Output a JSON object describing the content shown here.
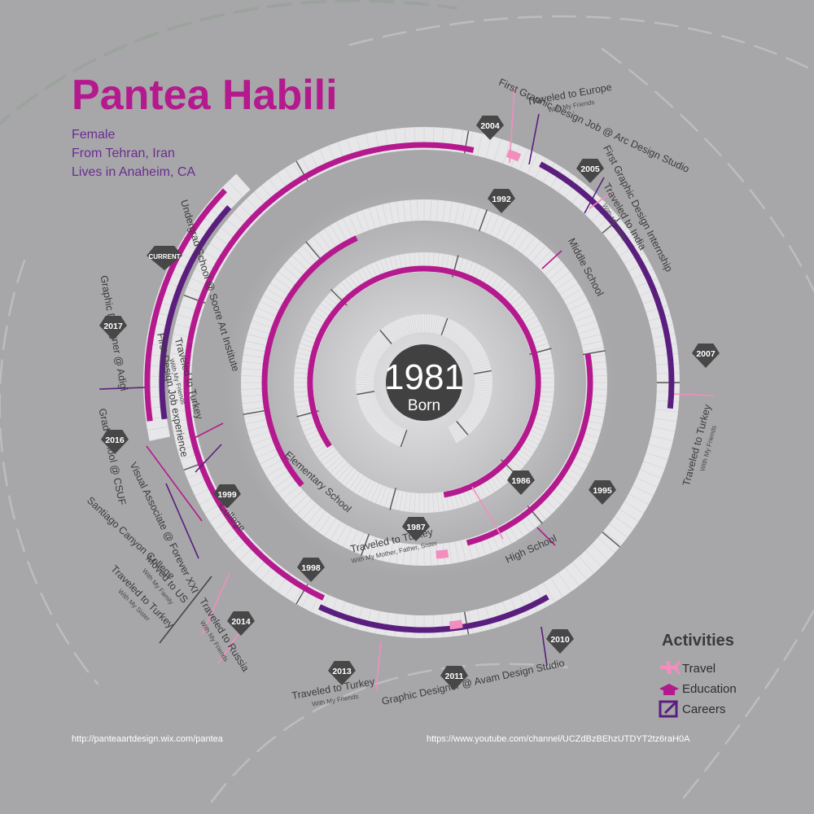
{
  "profile": {
    "name": "Pantea Habili",
    "lines": [
      "Female",
      "From Tehran, Iran",
      "Lives in Anaheim, CA"
    ]
  },
  "center": {
    "year": "1981",
    "label": "Born"
  },
  "colors": {
    "background": "#a7a7a9",
    "ring": "#e7e7e9",
    "education": "#b5198e",
    "career": "#5a1e7e",
    "travel": "#f28dbe",
    "marker": "#474747",
    "title": "#b5198e",
    "subtitle": "#6a2c91"
  },
  "year_markers": [
    {
      "year": "1986"
    },
    {
      "year": "1987"
    },
    {
      "year": "1992"
    },
    {
      "year": "1995"
    },
    {
      "year": "1998"
    },
    {
      "year": "1999"
    },
    {
      "year": "2004"
    },
    {
      "year": "2005"
    },
    {
      "year": "2007"
    },
    {
      "year": "2010"
    },
    {
      "year": "2011"
    },
    {
      "year": "2013"
    },
    {
      "year": "2014"
    },
    {
      "year": "2016"
    },
    {
      "year": "2017"
    },
    {
      "year": "CURRENT"
    }
  ],
  "events": [
    {
      "kind": "education",
      "label": "Elementary School"
    },
    {
      "kind": "travel",
      "label": "Traveled to Turkey",
      "note": "With My Mother, Father, Sister"
    },
    {
      "kind": "education",
      "label": "Middle School"
    },
    {
      "kind": "education",
      "label": "High School"
    },
    {
      "kind": "education",
      "label": "College"
    },
    {
      "kind": "education",
      "label": "Undergrad School @ Soore Art Institute"
    },
    {
      "kind": "travel",
      "label": "Traveled to Turkey",
      "note": "With My Friends"
    },
    {
      "kind": "career",
      "label": "First Design Job experience"
    },
    {
      "kind": "travel",
      "label": "Traveled to Europe",
      "note": "With My Friends"
    },
    {
      "kind": "career",
      "label": "First Graphic Design Job @ Arc Design Studio"
    },
    {
      "kind": "career",
      "label": "First Graphic Design Internship"
    },
    {
      "kind": "travel",
      "label": "Traveled to India",
      "note": "With My Sister"
    },
    {
      "kind": "travel",
      "label": "Traveled to Turkey",
      "note": "With My Friends"
    },
    {
      "kind": "career",
      "label": "Graphic Designer @ Avam Design Studio"
    },
    {
      "kind": "travel",
      "label": "Traveled to Turkey",
      "note": "With My Friends"
    },
    {
      "kind": "travel",
      "label": "Traveled to Russia",
      "note": "With My Friends"
    },
    {
      "kind": "travel",
      "label": "Traveled to Turkey",
      "note": "With My Sister"
    },
    {
      "kind": "travel",
      "label": "Moved to US",
      "note": "With My Family"
    },
    {
      "kind": "education",
      "label": "Santiago Canyon College"
    },
    {
      "kind": "career",
      "label": "Visual Associate @ Forever XXI"
    },
    {
      "kind": "education",
      "label": "Grad school @ CSUF"
    },
    {
      "kind": "career",
      "label": "Graphic Designer @ Adigi"
    }
  ],
  "legend": {
    "title": "Activities",
    "items": [
      {
        "label": "Travel",
        "icon": "airplane-icon"
      },
      {
        "label": "Education",
        "icon": "graduation-cap-icon"
      },
      {
        "label": "Careers",
        "icon": "pencil-box-icon"
      }
    ]
  },
  "links": {
    "website": "http://panteaartdesign.wix.com/pantea",
    "youtube": "https://www.youtube.com/channel/UCZdBzBEhzUTDYT2tz6raH0A"
  }
}
